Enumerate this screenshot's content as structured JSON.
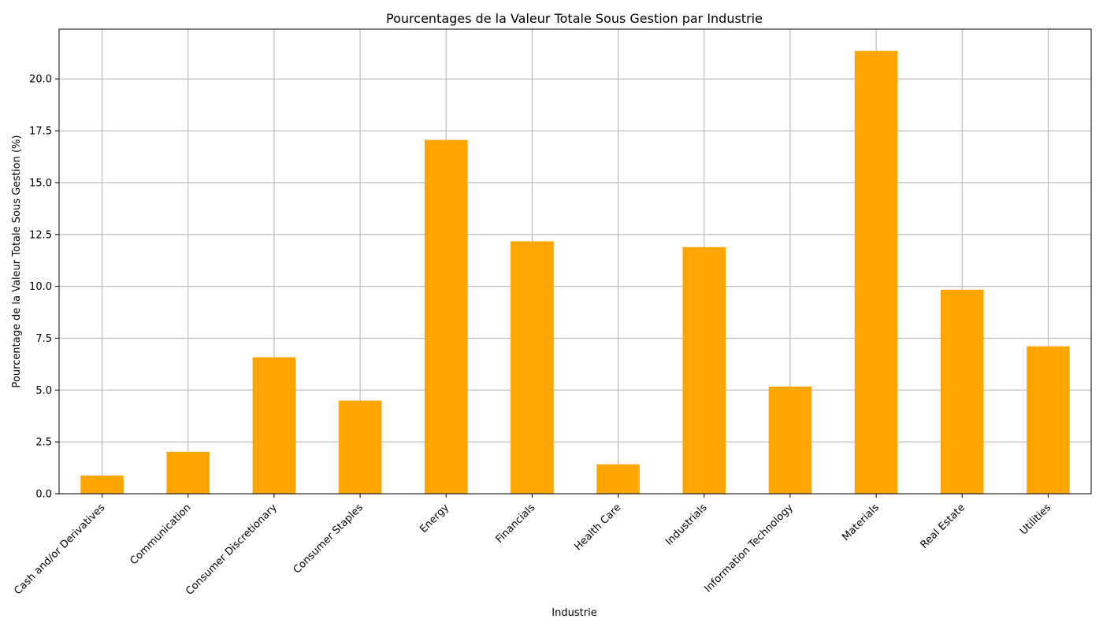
{
  "chart_data": {
    "type": "bar",
    "title": "Pourcentages de la Valeur Totale Sous Gestion par Industrie",
    "xlabel": "Industrie",
    "ylabel": "Pourcentage de la Valeur Totale Sous Gestion (%)",
    "categories": [
      "Cash and/or Derivatives",
      "Communication",
      "Consumer Discretionary",
      "Consumer Staples",
      "Energy",
      "Financials",
      "Health Care",
      "Industrials",
      "Information Technology",
      "Materials",
      "Real Estate",
      "Utilities"
    ],
    "values": [
      0.88,
      2.02,
      6.58,
      4.49,
      17.06,
      12.17,
      1.42,
      11.89,
      5.17,
      21.35,
      9.84,
      7.11
    ],
    "ylim": [
      0,
      22.4
    ],
    "yticks": [
      0.0,
      2.5,
      5.0,
      7.5,
      10.0,
      12.5,
      15.0,
      17.5,
      20.0
    ],
    "ytick_labels": [
      "0.0",
      "2.5",
      "5.0",
      "7.5",
      "10.0",
      "12.5",
      "15.0",
      "17.5",
      "20.0"
    ],
    "grid": true,
    "bar_color": "#FFA500",
    "grid_color": "#B0B0B0"
  }
}
